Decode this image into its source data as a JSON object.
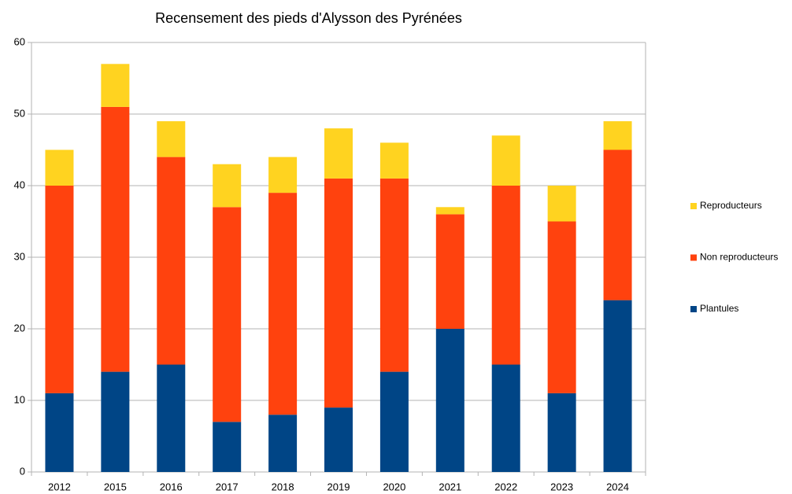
{
  "chart_data": {
    "type": "stacked_bar",
    "title": "Recensement des pieds d'Alysson des Pyrénées",
    "categories": [
      "2012",
      "2015",
      "2016",
      "2017",
      "2018",
      "2019",
      "2020",
      "2021",
      "2022",
      "2023",
      "2024"
    ],
    "series": [
      {
        "name": "Plantules",
        "color": "#004586",
        "values": [
          11,
          14,
          15,
          7,
          8,
          9,
          14,
          20,
          15,
          11,
          24
        ]
      },
      {
        "name": "Non reproducteurs",
        "color": "#ff420e",
        "values": [
          29,
          37,
          29,
          30,
          31,
          32,
          27,
          16,
          25,
          24,
          21
        ]
      },
      {
        "name": "Reproducteurs",
        "color": "#ffd320",
        "values": [
          5,
          6,
          5,
          6,
          5,
          7,
          5,
          1,
          7,
          5,
          4
        ]
      }
    ],
    "ylim": [
      0,
      60
    ],
    "yticks": [
      0,
      10,
      20,
      30,
      40,
      50,
      60
    ],
    "grid": true,
    "legend": "right"
  }
}
